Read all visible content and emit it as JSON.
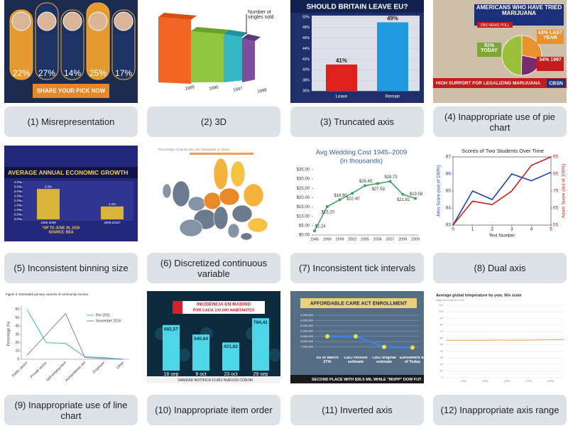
{
  "panels": [
    {
      "caption": "(1) Misrepresentation",
      "thumbnail": {
        "labels": [
          "22%",
          "27%",
          "14%",
          "25%",
          "17%"
        ],
        "button": "SHARE YOUR PICK NOW"
      }
    },
    {
      "caption": "(2) 3D",
      "thumbnail": {
        "legend": "Number of singles sold",
        "categories": [
          "1995",
          "1996",
          "1997",
          "1998"
        ]
      }
    },
    {
      "caption": "(3) Truncated axis",
      "thumbnail": {
        "title": "SHOULD BRITAIN LEAVE EU?",
        "categories": [
          "Leave",
          "Remain"
        ],
        "values": [
          41,
          49
        ],
        "value_labels": [
          "41%",
          "49%"
        ],
        "colors": [
          "#e0201b",
          "#1e9be0"
        ],
        "ylim": [
          36,
          50
        ],
        "yticks": [
          {
            "value": 36,
            "label": "36%"
          },
          {
            "value": 38,
            "label": "38%"
          },
          {
            "value": 40,
            "label": "40%"
          },
          {
            "value": 42,
            "label": "42%"
          },
          {
            "value": 44,
            "label": "44%"
          },
          {
            "value": 46,
            "label": "46%"
          },
          {
            "value": 48,
            "label": "48%"
          },
          {
            "value": 50,
            "label": "50%"
          }
        ]
      }
    },
    {
      "caption": "(4) Inappropriate use of pie chart",
      "thumbnail": {
        "title": "AMERICANS WHO HAVE TRIED MARIJUANA",
        "source": "CBS NEWS POLL",
        "labels": [
          "51% TODAY",
          "43% LAST YEAR",
          "34% 1997"
        ],
        "banner": "HIGH SUPPORT FOR LEGALIZING MARIJUANA",
        "logo": "CBSN"
      }
    },
    {
      "caption": "(5) Inconsistent binning size",
      "thumbnail": {
        "title": "AVERAGE ANNUAL ECONOMIC GROWTH",
        "categories": [
          "1950-2008",
          "2009-2016*"
        ],
        "values": [
          3.3,
          1.4
        ],
        "value_labels": [
          "3.3%",
          "1.4%"
        ],
        "ylim": [
          0,
          4
        ],
        "yticks": [
          {
            "value": 0,
            "label": "0.0%"
          },
          {
            "value": 0.5,
            "label": "0.5%"
          },
          {
            "value": 1,
            "label": "1.0%"
          },
          {
            "value": 1.5,
            "label": "1.5%"
          },
          {
            "value": 2,
            "label": "2.0%"
          },
          {
            "value": 2.5,
            "label": "2.5%"
          },
          {
            "value": 3,
            "label": "3.0%"
          },
          {
            "value": 3.5,
            "label": "3.5%"
          },
          {
            "value": 4,
            "label": "4.0%"
          }
        ],
        "notes": [
          "*UP TO JUNE 30, 2016",
          "SOURCE: BEA"
        ]
      }
    },
    {
      "caption": "(6) Discretized continuous variable",
      "thumbnail": {
        "title": "Percentage of adults who are overweight or obese"
      }
    },
    {
      "caption": "(7) Inconsistent tick intervals",
      "thumbnail": {
        "title": "Avg Wedding Cost 1945–2009",
        "subtitle": "(in thousands)",
        "categories": [
          "1945",
          "1990",
          "1999",
          "2002",
          "2005",
          "2006",
          "2007",
          "2008",
          "2009"
        ],
        "values": [
          2.24,
          15.2,
          18.9,
          22.4,
          26.45,
          27.59,
          28.73,
          21.81,
          19.58
        ],
        "value_labels": [
          "$2.24",
          "$15.20",
          "$18.90",
          "$22.40",
          "$26.45",
          "$27.59",
          "$28.73",
          "$21.81",
          "$19.58"
        ],
        "ylim": [
          0,
          35
        ],
        "yticks": [
          {
            "value": 0,
            "label": "$0.00"
          },
          {
            "value": 5,
            "label": "$5.00"
          },
          {
            "value": 10,
            "label": "$10.00"
          },
          {
            "value": 15,
            "label": "$15.00"
          },
          {
            "value": 20,
            "label": "$20.00"
          },
          {
            "value": 25,
            "label": "$25.00"
          },
          {
            "value": 30,
            "label": "$30.00"
          },
          {
            "value": 35,
            "label": "$35.00"
          }
        ],
        "color": "#3aa35c"
      }
    },
    {
      "caption": "(8) Dual axis",
      "thumbnail": {
        "title": "Scores of Two Students Over Time",
        "xlabel": "Test Number",
        "ylabel": "John Score (out of 100%)",
        "y2label": "Adam Score (out of 100%)",
        "x": [
          0,
          1,
          2,
          3,
          4,
          5
        ],
        "xlim": [
          0,
          5
        ],
        "xticks": [
          0,
          1,
          2,
          3,
          4,
          5
        ],
        "ylim": [
          83,
          87
        ],
        "yticks": [
          83,
          84,
          85,
          86,
          87
        ],
        "y2lim": [
          55,
          95
        ],
        "y2ticks": [
          55,
          65,
          75,
          85,
          95
        ],
        "series": [
          {
            "color": "#1f3fbf",
            "values": [
              83,
              85,
              84.5,
              86,
              85.6,
              86.1
            ]
          },
          {
            "axis": "y2",
            "color": "#c8201e",
            "values": [
              55,
              69,
              67,
              75,
              90,
              95
            ]
          }
        ]
      }
    },
    {
      "caption": "(9) Inappropriate use of line chart",
      "thumbnail": {
        "title": "Figure 3. Estimated primary sources of community income.",
        "ylabel": "Percentage (%)",
        "categories": [
          "Public sector",
          "Private sector",
          "Self-employment",
          "Humanitarian aid",
          "Employer",
          "Other"
        ],
        "ylim": [
          0,
          65
        ],
        "yticks": [
          0,
          10,
          20,
          30,
          40,
          50,
          60
        ],
        "series": [
          {
            "name": "Pre-2011",
            "color": "#3fbfb0",
            "values": [
              60,
              20,
              19,
              3,
              2,
              0
            ]
          },
          {
            "name": "November 2016",
            "color": "#8a7fa8",
            "values": [
              5,
              30,
              55,
              2,
              1,
              0
            ]
          }
        ]
      }
    },
    {
      "caption": "(10) Inappropriate item order",
      "thumbnail": {
        "title": "INCIDENCIA EN MADRID",
        "subtitle": "POR CADA 100.000 HABITANTES",
        "categories": [
          "18 sep",
          "9 oct",
          "23 oct",
          "29 sep"
        ],
        "values": [
          682.57,
          540.64,
          421.62,
          784.41
        ],
        "value_labels": [
          "682,57",
          "540,64",
          "421,62",
          "784,41"
        ],
        "ylim": [
          0,
          850
        ],
        "ticker": "SANIDAD NOTIFICA 15.851 NUEVOS CONTAI"
      }
    },
    {
      "caption": "(11) Inverted axis",
      "thumbnail": {
        "title": "AFFORDABLE CARE ACT ENROLLMENT",
        "categories": [
          "As of March 27th",
          "CBO revised estimate",
          "CBO original estimate",
          "Enrollment as of Today"
        ],
        "values": [
          6000000,
          6000000,
          7000000,
          7066000
        ],
        "ylim": [
          4000000,
          7500000
        ],
        "inverted": true,
        "yticks": [
          {
            "value": 4000000,
            "label": "4,000,000"
          },
          {
            "value": 4500000,
            "label": "4,500,000"
          },
          {
            "value": 5000000,
            "label": "5,000,000"
          },
          {
            "value": 5500000,
            "label": "5,500,000"
          },
          {
            "value": 6000000,
            "label": "6,000,000"
          },
          {
            "value": 6500000,
            "label": "6,500,000"
          },
          {
            "value": 7000000,
            "label": "7,000,000"
          }
        ],
        "ticker": "SECOND PLACE WITH $26.5 MIL WHILE \"MUPP\" DOW FUT"
      }
    },
    {
      "caption": "(12) Inappropriate axis range",
      "thumbnail": {
        "title": "Average global temperature by year, 50x scale",
        "subtitle": "Data from NASA GISS",
        "x": [
          1880,
          1895,
          1910,
          1925,
          1940,
          1955,
          1970,
          1985,
          2000,
          2015
        ],
        "values": [
          56.8,
          56.9,
          56.7,
          56.9,
          57.1,
          57.0,
          57.0,
          57.3,
          57.6,
          58.0
        ],
        "xlim": [
          1880,
          2015
        ],
        "xticks": [
          1900,
          1925,
          1950,
          1975,
          2000
        ],
        "ylim": [
          0,
          110
        ],
        "yticks": [
          {
            "value": 0,
            "label": "0°"
          },
          {
            "value": 10,
            "label": "10°"
          },
          {
            "value": 20,
            "label": "20°"
          },
          {
            "value": 30,
            "label": "30°"
          },
          {
            "value": 40,
            "label": "40°"
          },
          {
            "value": 50,
            "label": "50°"
          },
          {
            "value": 60,
            "label": "60°"
          },
          {
            "value": 70,
            "label": "70°"
          },
          {
            "value": 80,
            "label": "80°"
          },
          {
            "value": 90,
            "label": "90°"
          },
          {
            "value": 100,
            "label": "100°"
          },
          {
            "value": 110,
            "label": "110°"
          }
        ],
        "color": "#e8a040",
        "grid": true
      }
    }
  ]
}
